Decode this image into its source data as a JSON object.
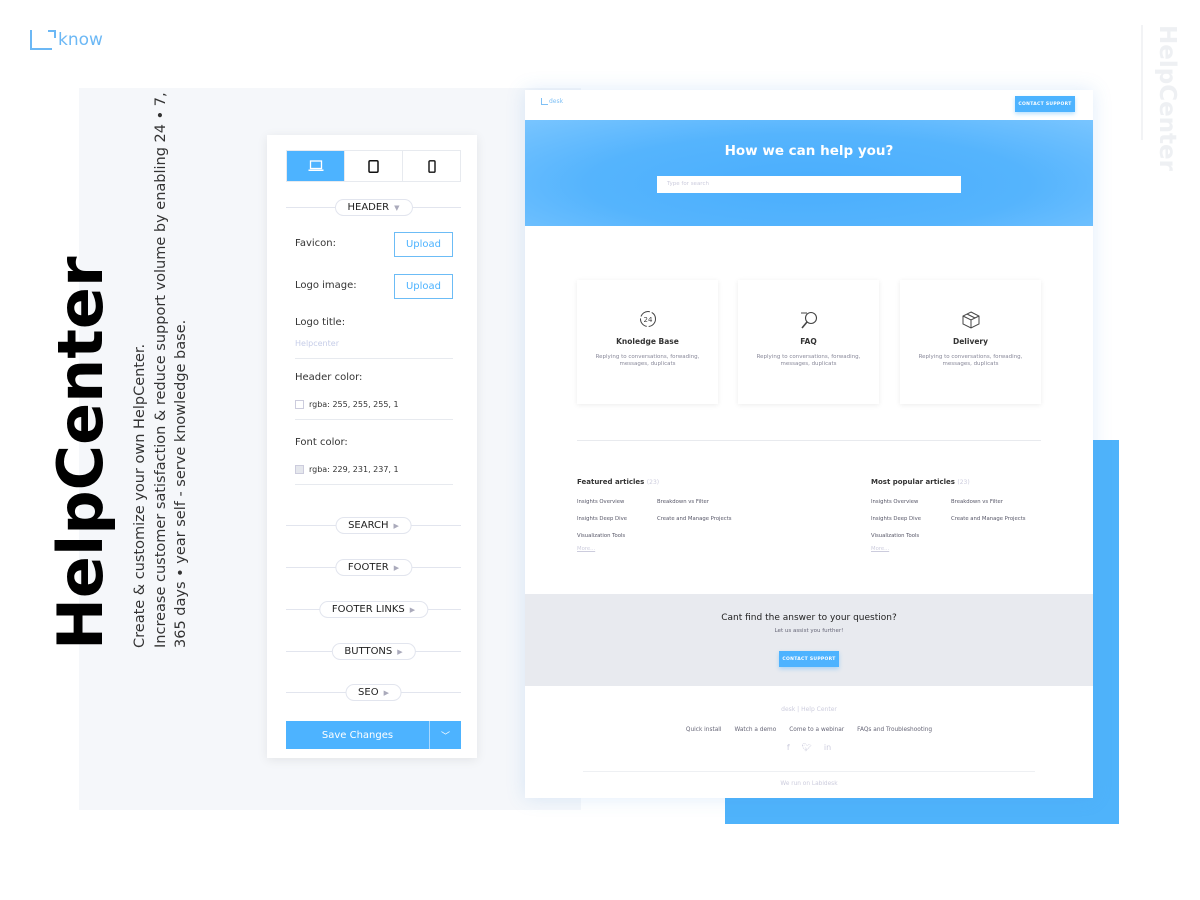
{
  "brand": {
    "logo_text": "know"
  },
  "hero_title": "HelpCenter",
  "subtitle_lines": [
    "Create & customize your own HelpCenter.",
    "Increase customer satisfaction & reduce support volume by enabling 24 • 7,",
    "365 days • year self - serve knowledge base."
  ],
  "side_title": "HelpCenter",
  "colors": {
    "accent": "#4db3ff",
    "panel_bg": "#f5f7fa",
    "cta_bg": "#e8eaef"
  },
  "settings": {
    "device_tabs": [
      {
        "icon": "laptop-icon",
        "active": true
      },
      {
        "icon": "tablet-icon",
        "active": false
      },
      {
        "icon": "phone-icon",
        "active": false
      }
    ],
    "header_section": "HEADER",
    "favicon_label": "Favicon:",
    "upload_label": "Upload",
    "logo_image_label": "Logo image:",
    "logo_title_label": "Logo title:",
    "logo_title_placeholder": "Helpcenter",
    "header_color_label": "Header color:",
    "header_color_value": "rgba: 255, 255, 255, 1",
    "font_color_label": "Font color:",
    "font_color_value": "rgba: 229, 231, 237, 1",
    "sections": [
      "SEARCH",
      "FOOTER",
      "FOOTER LINKS",
      "BUTTONS",
      "SEO"
    ],
    "save_label": "Save Changes"
  },
  "preview": {
    "logo_text": "desk",
    "contact_label": "CONTACT SUPPORT",
    "hero_title": "How we can help you?",
    "search_placeholder": "Type for search",
    "cards": [
      {
        "icon": "24-hours-icon",
        "title": "Knoledge Base",
        "desc": "Replying to conversations, forwading, messages, duplicats"
      },
      {
        "icon": "magnifier-icon",
        "title": "FAQ",
        "desc": "Replying to conversations, forwading, messages, duplicats"
      },
      {
        "icon": "box-icon",
        "title": "Delivery",
        "desc": "Replying to conversations, forwading, messages, duplicats"
      }
    ],
    "featured": {
      "title": "Featured articles",
      "count": "(23)",
      "items": [
        "Insights Overview",
        "Breakdown vs Filter",
        "Insights Deep Dive",
        "Create and Manage Projects",
        "Visualization Tools"
      ],
      "more": "More..."
    },
    "popular": {
      "title": "Most popular articles",
      "count": "(23)",
      "items": [
        "Insights Overview",
        "Breakdown vs Filter",
        "Insights Deep Dive",
        "Create and Manage Projects",
        "Visualization Tools"
      ],
      "more": "More..."
    },
    "cta": {
      "title": "Cant find the answer to your question?",
      "subtitle": "Let us assist you further!",
      "button": "CONTACT SUPPORT"
    },
    "footer": {
      "logo": "desk  |  Help Center",
      "links": [
        "Quick install",
        "Watch a demo",
        "Come to a webinar",
        "FAQs and Troubleshooting"
      ],
      "social": [
        "facebook-icon",
        "twitter-icon",
        "linkedin-icon"
      ],
      "run": "We run on Labidesk"
    }
  }
}
